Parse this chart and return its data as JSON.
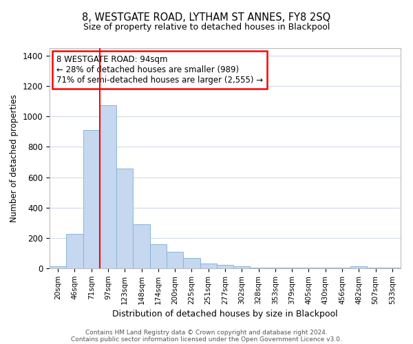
{
  "title": "8, WESTGATE ROAD, LYTHAM ST ANNES, FY8 2SQ",
  "subtitle": "Size of property relative to detached houses in Blackpool",
  "xlabel": "Distribution of detached houses by size in Blackpool",
  "ylabel": "Number of detached properties",
  "bar_color": "#c5d8f0",
  "bar_edge_color": "#8ab4d8",
  "categories": [
    "20sqm",
    "46sqm",
    "71sqm",
    "97sqm",
    "123sqm",
    "148sqm",
    "174sqm",
    "200sqm",
    "225sqm",
    "251sqm",
    "277sqm",
    "302sqm",
    "328sqm",
    "353sqm",
    "379sqm",
    "405sqm",
    "430sqm",
    "456sqm",
    "482sqm",
    "507sqm",
    "533sqm"
  ],
  "values": [
    15,
    228,
    910,
    1075,
    655,
    290,
    158,
    107,
    68,
    30,
    22,
    15,
    5,
    5,
    5,
    5,
    5,
    5,
    15,
    5,
    5
  ],
  "ylim": [
    0,
    1450
  ],
  "yticks": [
    0,
    200,
    400,
    600,
    800,
    1000,
    1200,
    1400
  ],
  "red_line_index": 3,
  "annotation_box_text": "8 WESTGATE ROAD: 94sqm\n← 28% of detached houses are smaller (989)\n71% of semi-detached houses are larger (2,555) →",
  "footer_line1": "Contains HM Land Registry data © Crown copyright and database right 2024.",
  "footer_line2": "Contains public sector information licensed under the Open Government Licence v3.0.",
  "background_color": "#ffffff",
  "grid_color": "#d0daea"
}
